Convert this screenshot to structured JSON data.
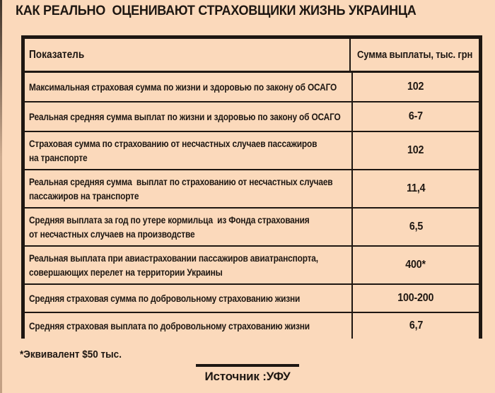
{
  "palette": {
    "background": "#FBD9BB",
    "ink": "#1E1712"
  },
  "chart_data": {
    "type": "table",
    "title": "КАК РЕАЛЬНО  ОЦЕНИВАЮТ СТРАХОВЩИКИ ЖИЗНЬ УКРАИНЦА",
    "columns": [
      "Показатель",
      "Сумма выплаты, тыс. грн"
    ],
    "rows": [
      [
        "Максимальная страховая сумма по жизни и здоровью по закону об ОСАГО",
        "102"
      ],
      [
        "Реальная средняя сумма выплат по жизни и здоровью по закону об ОСАГО",
        "6-7"
      ],
      [
        "Страховая сумма по страхованию от несчастных случаев пассажиров\nна транспорте",
        "102"
      ],
      [
        "Реальная средняя сумма  выплат по страхованию от несчастных случаев\nпассажиров на транспорте",
        "11,4"
      ],
      [
        "Средняя выплата за год по утере кормильца  из Фонда страхования\nот несчастных случаев на производстве",
        "6,5"
      ],
      [
        "Реальная выплата при авиастраховании пассажиров авиатранспорта,\nсовершающих перелет на территории Украины",
        "400*"
      ],
      [
        "Средняя страховая сумма по добровольному страхованию жизни",
        "100-200"
      ],
      [
        "Средняя страховая выплата по добровольному страхованию жизни",
        "6,7"
      ]
    ],
    "footnote": "*Эквивалент $50 тыс.",
    "source": "Источник :УФУ",
    "value_unit": "тыс. грн"
  }
}
